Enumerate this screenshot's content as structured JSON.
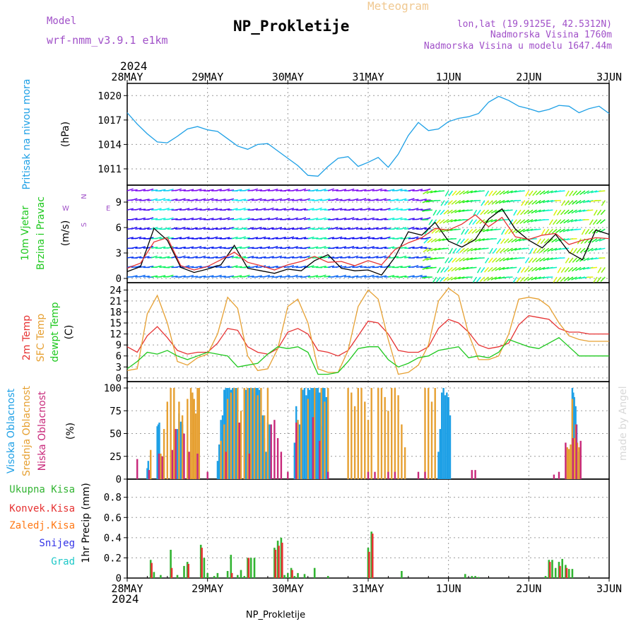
{
  "header": {
    "model_label": "Model",
    "model_name": "wrf-nmm_v3.9.1  e1km",
    "title": "NP_Prokletije",
    "product": "Meteogram",
    "lonlat": "lon,lat (19.9125E, 42.5312N)",
    "elevation": "Nadmorska Visina 1760m",
    "model_elevation": "Nadmorska Visina u modelu 1647.44m"
  },
  "time_axis": {
    "year": "2024",
    "days": [
      "28MAY",
      "29MAY",
      "30MAY",
      "31MAY",
      "1JUN",
      "2JUN",
      "3JUN"
    ],
    "hours_per_step": 1
  },
  "footer": {
    "station": "NP_Prokletije",
    "credit": "made by Angel"
  },
  "colors": {
    "pressure": "#1ea0e6",
    "wind_speed": "#000000",
    "wind_gust": "#e63232",
    "t2m": "#e63232",
    "tsfc": "#e6a032",
    "dewpt": "#1ec81e",
    "cloud_high": "#1ea0e6",
    "cloud_mid": "#e6a032",
    "cloud_low": "#c8287a",
    "precip_total": "#32b432",
    "precip_conv": "#e63232",
    "precip_frozen": "#ff7814",
    "snow": "#3232e6",
    "hail": "#1ec8c8",
    "label_purple": "#a050c8"
  },
  "chart_data": [
    {
      "id": "pressure",
      "type": "line",
      "ylabel": "Pritisak na nivou mora",
      "unit": "(hPa)",
      "yticks": [
        1011,
        1014,
        1017,
        1020
      ],
      "ylim": [
        1009,
        1021.5
      ],
      "x": [
        0,
        3,
        6,
        9,
        12,
        15,
        18,
        21,
        24,
        27,
        30,
        33,
        36,
        39,
        42,
        45,
        48,
        51,
        54,
        57,
        60,
        63,
        66,
        69,
        72,
        75,
        78,
        81,
        84,
        87,
        90,
        93,
        96,
        99,
        102,
        105,
        108,
        111,
        114,
        117,
        120,
        123,
        126,
        129,
        132,
        135,
        138,
        141,
        144
      ],
      "series": [
        {
          "key": "pressure",
          "values": [
            1017.9,
            1016.5,
            1015.3,
            1014.3,
            1014.2,
            1015.0,
            1015.9,
            1016.2,
            1015.8,
            1015.6,
            1014.7,
            1013.8,
            1013.4,
            1014.0,
            1014.1,
            1013.2,
            1012.3,
            1011.4,
            1010.2,
            1010.1,
            1011.3,
            1012.3,
            1012.5,
            1011.3,
            1011.8,
            1012.4,
            1011.2,
            1012.8,
            1015.1,
            1016.7,
            1015.7,
            1015.9,
            1016.8,
            1017.2,
            1017.4,
            1017.8,
            1019.2,
            1019.9,
            1019.4,
            1018.7,
            1018.4,
            1018.0,
            1018.3,
            1018.8,
            1018.7,
            1017.9,
            1018.4,
            1018.7,
            1017.8
          ]
        }
      ]
    },
    {
      "id": "wind",
      "type": "line",
      "ylabel": [
        "10m Vjetar",
        "Brzina i Pravac"
      ],
      "unit": "(m/s)",
      "compass": [
        "N",
        "W",
        "E",
        "S"
      ],
      "yticks": [
        0,
        3,
        6,
        9
      ],
      "ylim": [
        -0.5,
        11
      ],
      "x": [
        0,
        4,
        8,
        12,
        16,
        20,
        24,
        28,
        32,
        36,
        40,
        44,
        48,
        52,
        56,
        60,
        64,
        68,
        72,
        76,
        80,
        84,
        88,
        92,
        96,
        100,
        104,
        108,
        112,
        116,
        120,
        124,
        128,
        132,
        136,
        140,
        144
      ],
      "series": [
        {
          "key": "wind_speed",
          "values": [
            0.8,
            1.4,
            5.9,
            4.5,
            1.3,
            0.7,
            1.1,
            1.6,
            3.9,
            1.2,
            0.9,
            0.6,
            1.1,
            0.9,
            2.1,
            2.8,
            1.2,
            0.9,
            1.0,
            0.4,
            2.5,
            5.5,
            5.1,
            6.6,
            4.4,
            3.7,
            4.6,
            7.0,
            8.2,
            5.8,
            4.5,
            3.6,
            5.2,
            3.1,
            2.2,
            5.7,
            5.2
          ]
        },
        {
          "key": "wind_gust",
          "values": [
            1.2,
            1.8,
            4.3,
            4.8,
            1.5,
            1.0,
            1.4,
            2.2,
            3.1,
            1.9,
            1.5,
            1.0,
            1.6,
            2.0,
            2.6,
            1.9,
            2.0,
            1.5,
            2.1,
            1.6,
            3.4,
            4.2,
            4.8,
            5.9,
            5.7,
            6.4,
            7.5,
            6.1,
            7.2,
            4.9,
            4.6,
            5.1,
            5.3,
            4.0,
            4.5,
            4.8,
            4.7
          ]
        }
      ]
    },
    {
      "id": "temperature",
      "type": "line",
      "ylabel": [
        "2m Temp",
        "SFC Temp",
        "dewpt Temp"
      ],
      "unit": "(C)",
      "yticks": [
        0,
        3,
        6,
        9,
        12,
        15,
        18,
        21,
        24
      ],
      "ylim": [
        -1,
        26
      ],
      "x": [
        0,
        3,
        6,
        9,
        12,
        15,
        18,
        21,
        24,
        27,
        30,
        33,
        36,
        39,
        42,
        45,
        48,
        51,
        54,
        57,
        60,
        63,
        66,
        69,
        72,
        75,
        78,
        81,
        84,
        87,
        90,
        93,
        96,
        99,
        102,
        105,
        108,
        111,
        114,
        117,
        120,
        123,
        126,
        129,
        132,
        135,
        138,
        141,
        144
      ],
      "series": [
        {
          "key": "t2m",
          "values": [
            8.5,
            7.0,
            11.5,
            14.0,
            11.0,
            7.5,
            6.5,
            7.0,
            7.0,
            9.5,
            13.5,
            13.0,
            8.5,
            7.0,
            6.5,
            8.0,
            12.5,
            13.5,
            12.0,
            7.5,
            7.0,
            6.0,
            7.5,
            11.5,
            15.5,
            15.0,
            12.0,
            7.5,
            7.0,
            7.0,
            8.5,
            13.5,
            16.0,
            15.0,
            12.5,
            9.0,
            8.0,
            8.5,
            9.5,
            14.5,
            17.0,
            16.5,
            16.0,
            13.5,
            12.5,
            12.5,
            12.0,
            12.0,
            12.0
          ]
        },
        {
          "key": "tsfc",
          "values": [
            2.0,
            2.5,
            17.5,
            22.5,
            15.0,
            4.5,
            3.5,
            5.5,
            6.5,
            12.0,
            22.0,
            19.0,
            6.0,
            2.0,
            2.5,
            8.0,
            19.5,
            21.5,
            15.0,
            2.5,
            1.5,
            1.5,
            7.5,
            19.5,
            24.0,
            21.5,
            10.5,
            1.0,
            1.5,
            3.5,
            9.0,
            21.0,
            24.5,
            22.5,
            12.0,
            5.0,
            5.0,
            6.0,
            12.0,
            21.5,
            22.0,
            21.5,
            19.5,
            15.0,
            11.5,
            10.5,
            10.0,
            10.0,
            10.0
          ]
        },
        {
          "key": "dewpt",
          "values": [
            2.5,
            4.5,
            7.0,
            6.5,
            7.5,
            6.0,
            5.0,
            6.0,
            7.0,
            6.5,
            6.0,
            3.0,
            3.5,
            4.0,
            6.5,
            8.5,
            8.0,
            8.5,
            7.0,
            1.0,
            1.0,
            1.5,
            4.5,
            8.0,
            8.5,
            8.5,
            5.0,
            3.0,
            4.0,
            5.5,
            6.0,
            7.5,
            8.0,
            8.5,
            5.5,
            6.0,
            5.5,
            7.0,
            10.5,
            9.5,
            8.5,
            8.0,
            9.5,
            11.0,
            8.5,
            6.0,
            6.0,
            6.0,
            6.0
          ]
        }
      ]
    },
    {
      "id": "clouds",
      "type": "bar",
      "ylabel": [
        "Visoka Oblacnost",
        "Srednja Oblacnost",
        "Niska Oblacnost"
      ],
      "unit": "(%)",
      "yticks": [
        0,
        25,
        50,
        75,
        100
      ],
      "ylim": [
        0,
        107
      ],
      "series": [
        {
          "key": "cloud_high",
          "x": [
            6,
            6.3,
            9,
            9.3,
            9.6,
            15,
            15.5,
            16,
            16.5,
            27,
            27.5,
            28,
            28.5,
            29,
            29.5,
            30,
            30.5,
            31,
            31.5,
            32,
            32.5,
            33,
            33.5,
            35,
            35.5,
            36,
            36.5,
            37,
            37.5,
            38,
            38.5,
            39,
            39.5,
            40,
            40.5,
            41,
            41.5,
            42,
            42.5,
            50,
            50.5,
            51,
            51.5,
            52,
            52.5,
            53,
            53.5,
            54,
            54.5,
            55,
            55.5,
            56,
            56.5,
            57,
            57.5,
            58,
            58.5,
            59,
            59.5,
            93,
            93.5,
            94,
            94.5,
            95,
            95.5,
            96,
            96.5,
            133,
            133.3,
            133.6,
            134,
            134.3,
            134.6
          ],
          "values": [
            12,
            20,
            58,
            60,
            62,
            55,
            72,
            63,
            60,
            20,
            38,
            65,
            70,
            98,
            100,
            100,
            100,
            98,
            100,
            98,
            100,
            88,
            62,
            100,
            98,
            100,
            100,
            98,
            100,
            95,
            100,
            100,
            98,
            62,
            70,
            45,
            30,
            62,
            60,
            40,
            80,
            62,
            60,
            100,
            98,
            100,
            92,
            100,
            98,
            100,
            100,
            95,
            100,
            100,
            95,
            58,
            100,
            100,
            90,
            30,
            55,
            95,
            100,
            92,
            95,
            90,
            70,
            100,
            95,
            90,
            80,
            60,
            30
          ]
        },
        {
          "key": "cloud_mid",
          "x": [
            7,
            10,
            11,
            12,
            13,
            14,
            15.5,
            16.5,
            18,
            19,
            19.5,
            20,
            20.5,
            21,
            21.5,
            28,
            29,
            30,
            31,
            32,
            33,
            34,
            35,
            36,
            37,
            38,
            39,
            40,
            41,
            42,
            51,
            52,
            54,
            56,
            58,
            59,
            60,
            66,
            67,
            68,
            69,
            70,
            71,
            72,
            73,
            75,
            76,
            77,
            78,
            79,
            80,
            81,
            82,
            83,
            89,
            90,
            91,
            92,
            131.5,
            132,
            132.5,
            133,
            133.5,
            134,
            134.5,
            135
          ],
          "values": [
            32,
            28,
            55,
            85,
            100,
            100,
            85,
            70,
            88,
            100,
            95,
            88,
            72,
            100,
            100,
            42,
            60,
            88,
            95,
            100,
            100,
            75,
            100,
            100,
            100,
            100,
            92,
            100,
            70,
            100,
            65,
            100,
            88,
            100,
            100,
            85,
            100,
            100,
            95,
            80,
            100,
            100,
            85,
            65,
            100,
            100,
            100,
            90,
            75,
            100,
            100,
            92,
            60,
            35,
            100,
            100,
            85,
            100,
            35,
            33,
            38,
            88,
            45,
            60,
            40,
            35
          ]
        },
        {
          "key": "cloud_low",
          "x": [
            3,
            6.5,
            9.5,
            10.5,
            13.5,
            14.5,
            17,
            18.5,
            21,
            24,
            29.5,
            33.5,
            36.5,
            43,
            44,
            45,
            46,
            48,
            50.5,
            55.5,
            57.5,
            60,
            72,
            74,
            78,
            80,
            87,
            89,
            103,
            104,
            127.5,
            129,
            131,
            133.2,
            134.2,
            135.5
          ],
          "values": [
            22,
            10,
            28,
            25,
            32,
            55,
            50,
            30,
            28,
            8,
            30,
            62,
            28,
            60,
            65,
            45,
            30,
            8,
            62,
            68,
            42,
            8,
            8,
            8,
            8,
            8,
            8,
            8,
            10,
            10,
            5,
            8,
            40,
            45,
            60,
            42
          ]
        }
      ]
    },
    {
      "id": "precip",
      "type": "bar",
      "ylabel": "1hr Precip (mm)",
      "legend": [
        "Ukupna Kisa",
        "Konvek.Kisa",
        "Zaledj.Kisa",
        "Snijeg",
        "Grad"
      ],
      "yticks": [
        0,
        0.2,
        0.4,
        0.6,
        0.8
      ],
      "ylim": [
        0,
        0.98
      ],
      "series": [
        {
          "key": "precip_total",
          "x": [
            7,
            8,
            10,
            13,
            15,
            17,
            18,
            22,
            23,
            24,
            26,
            27,
            30,
            31,
            33,
            34,
            35,
            36,
            37,
            38,
            44,
            45,
            46,
            47,
            48,
            49,
            50,
            51,
            53,
            56,
            60,
            72,
            73,
            82,
            101,
            103,
            104,
            105,
            125,
            126,
            127,
            128,
            129,
            130,
            131,
            132,
            133
          ],
          "values": [
            0.18,
            0.06,
            0.03,
            0.28,
            0.03,
            0.12,
            0.16,
            0.33,
            0.2,
            0.05,
            0.02,
            0.05,
            0.07,
            0.23,
            0.03,
            0.08,
            0.02,
            0.2,
            0.2,
            0.2,
            0.3,
            0.37,
            0.4,
            0.03,
            0.05,
            0.1,
            0.02,
            0.05,
            0.04,
            0.1,
            0.02,
            0.3,
            0.46,
            0.07,
            0.04,
            0.02,
            0.02,
            0.01,
            0.02,
            0.18,
            0.18,
            0.1,
            0.16,
            0.19,
            0.13,
            0.09,
            0.09
          ]
        },
        {
          "key": "precip_conv",
          "x": [
            7.3,
            13.3,
            18.3,
            22.3,
            31.3,
            36.3,
            44.3,
            45.3,
            46.3,
            49.3,
            72.3,
            73.3,
            126.3,
            129.3,
            131.3
          ],
          "values": [
            0.15,
            0.1,
            0.14,
            0.3,
            0.05,
            0.2,
            0.28,
            0.32,
            0.35,
            0.08,
            0.26,
            0.44,
            0.16,
            0.12,
            0.1
          ]
        }
      ]
    }
  ]
}
